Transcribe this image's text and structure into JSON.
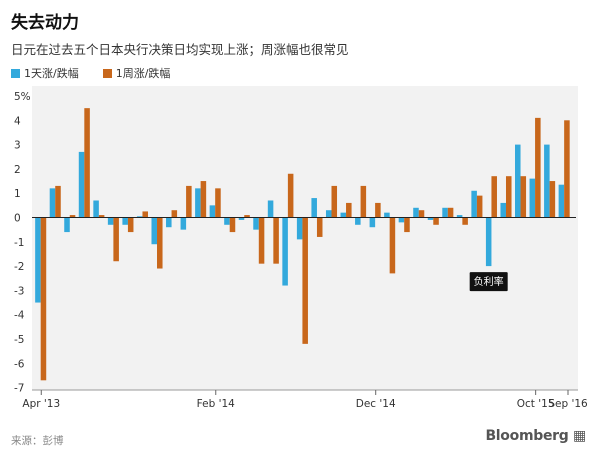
{
  "header": {
    "title": "失去动力",
    "subtitle": "日元在过去五个日本央行决策日均实现上涨；周涨幅也很常见"
  },
  "footer": {
    "source": "来源：彭博",
    "brand": "Bloomberg"
  },
  "colors": {
    "day": "#33a9dc",
    "week": "#c8671b",
    "zero_line": "#222222",
    "annotation_bg": "#111111",
    "annotation_text": "#ffffff"
  },
  "chart_data": {
    "type": "bar",
    "title": "失去动力",
    "subtitle": "日元在过去五个日本央行决策日均实现上涨；周涨幅也很常见",
    "xlabel": "",
    "ylabel": "",
    "ylim": [
      -7,
      5
    ],
    "yticks": [
      -7,
      -6,
      -5,
      -4,
      -3,
      -2,
      -1,
      0,
      1,
      2,
      3,
      4
    ],
    "top_tick_label": "5%",
    "grid": false,
    "legend_position": "top-left",
    "x_tick_labels": [
      {
        "label": "Apr '13",
        "index": 0
      },
      {
        "label": "Feb '14",
        "index": 12
      },
      {
        "label": "Dec '14",
        "index": 23
      },
      {
        "label": "Oct '15",
        "index": 34
      },
      {
        "label": "Sep '16",
        "index": 42
      }
    ],
    "series": [
      {
        "name": "1天涨/跌幅",
        "values": [
          -3.5,
          1.2,
          -0.6,
          2.7,
          0.7,
          -0.3,
          -0.3,
          0.05,
          -1.1,
          -0.4,
          -0.5,
          1.2,
          0.5,
          -0.3,
          -0.1,
          -0.5,
          0.7,
          -2.8,
          -0.9,
          0.8,
          0.3,
          0.2,
          -0.3,
          -0.4,
          0.2,
          -0.2,
          0.4,
          -0.1,
          0.4,
          0.1,
          1.1,
          -2.0,
          0.6,
          3.0,
          1.6,
          3.0,
          1.35
        ]
      },
      {
        "name": "1周涨/跌幅",
        "values": [
          -6.7,
          1.3,
          0.1,
          4.5,
          0.1,
          -1.8,
          -0.6,
          0.25,
          -2.1,
          0.3,
          1.3,
          1.5,
          1.2,
          -0.6,
          0.1,
          -1.9,
          -1.9,
          1.8,
          -5.2,
          -0.8,
          1.3,
          0.6,
          1.3,
          0.6,
          -2.3,
          -0.6,
          0.3,
          -0.3,
          0.4,
          -0.3,
          0.9,
          1.7,
          1.7,
          1.7,
          4.1,
          1.5,
          4.0
        ]
      }
    ],
    "annotations": [
      {
        "text": "负利率",
        "series": "1天涨/跌幅",
        "index": 31
      }
    ]
  }
}
